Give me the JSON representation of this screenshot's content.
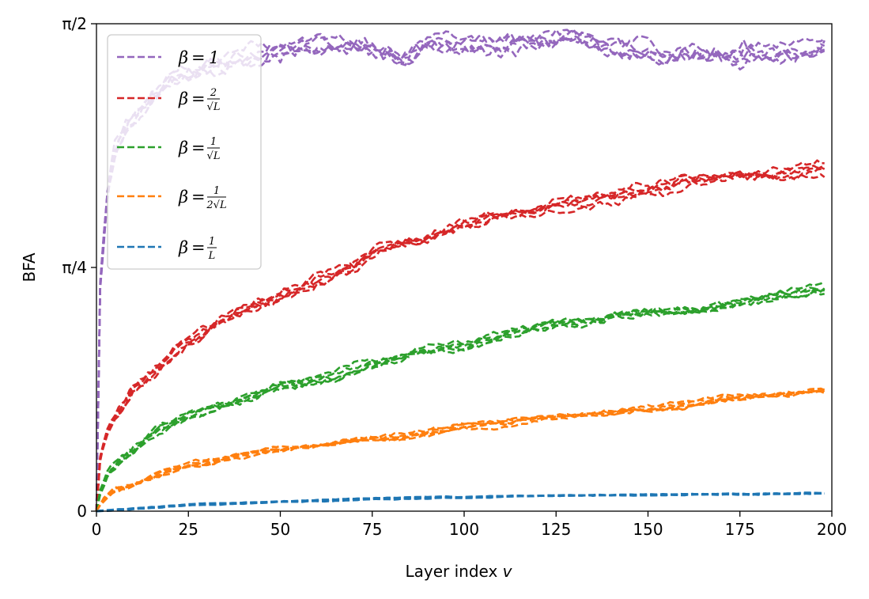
{
  "chart_data": {
    "type": "line",
    "title": "",
    "xlabel": "Layer index",
    "xlabel_var": "v",
    "ylabel": "BFA",
    "xlim": [
      0,
      200
    ],
    "ylim": [
      0,
      1.5708
    ],
    "x_ticks": [
      0,
      25,
      50,
      75,
      100,
      125,
      150,
      175,
      200
    ],
    "y_ticks": [
      {
        "value": 0,
        "label": "0"
      },
      {
        "value": 0.7854,
        "label": "π/4"
      },
      {
        "value": 1.5708,
        "label": "π/2"
      }
    ],
    "grid": false,
    "legend_position": "top-left",
    "legend": [
      {
        "label": "β = 1",
        "color": "#9467bd"
      },
      {
        "label": "β = 2/√L",
        "color": "#d62728"
      },
      {
        "label": "β = 1/√L",
        "color": "#2ca02c"
      },
      {
        "label": "β = 1/(2√L)",
        "color": "#ff7f0e"
      },
      {
        "label": "β = 1/L",
        "color": "#1f77b4"
      }
    ],
    "series": [
      {
        "group": "β = 1",
        "color": "#9467bd",
        "runs": 5,
        "x": [
          0,
          1,
          3,
          5,
          8,
          10,
          15,
          20,
          25,
          30,
          40,
          50,
          60,
          70,
          80,
          83,
          90,
          100,
          110,
          120,
          130,
          140,
          150,
          153,
          160,
          170,
          180,
          190,
          198
        ],
        "y": [
          0,
          0.73,
          1.02,
          1.16,
          1.23,
          1.26,
          1.33,
          1.38,
          1.41,
          1.44,
          1.47,
          1.48,
          1.49,
          1.5,
          1.47,
          1.45,
          1.5,
          1.49,
          1.48,
          1.5,
          1.51,
          1.48,
          1.47,
          1.45,
          1.48,
          1.47,
          1.49,
          1.48,
          1.5
        ]
      },
      {
        "group": "β = 2/√L",
        "color": "#d62728",
        "runs": 5,
        "x": [
          0,
          1,
          3,
          5,
          8,
          10,
          15,
          20,
          25,
          30,
          40,
          50,
          60,
          70,
          75,
          80,
          90,
          100,
          110,
          120,
          130,
          140,
          150,
          160,
          170,
          180,
          190,
          198
        ],
        "y": [
          0,
          0.17,
          0.26,
          0.3,
          0.35,
          0.39,
          0.44,
          0.49,
          0.54,
          0.58,
          0.65,
          0.7,
          0.75,
          0.79,
          0.84,
          0.86,
          0.88,
          0.92,
          0.95,
          0.97,
          1.0,
          1.02,
          1.04,
          1.06,
          1.07,
          1.08,
          1.09,
          1.1
        ]
      },
      {
        "group": "β = 1/√L",
        "color": "#2ca02c",
        "runs": 5,
        "x": [
          0,
          1,
          3,
          5,
          8,
          10,
          15,
          20,
          25,
          30,
          40,
          50,
          60,
          70,
          80,
          90,
          100,
          110,
          120,
          130,
          140,
          150,
          160,
          170,
          180,
          190,
          198
        ],
        "y": [
          0,
          0.06,
          0.12,
          0.15,
          0.18,
          0.2,
          0.25,
          0.28,
          0.31,
          0.33,
          0.36,
          0.4,
          0.42,
          0.46,
          0.49,
          0.52,
          0.53,
          0.56,
          0.59,
          0.61,
          0.62,
          0.64,
          0.65,
          0.67,
          0.69,
          0.71,
          0.72
        ]
      },
      {
        "group": "β = 1/(2√L)",
        "color": "#ff7f0e",
        "runs": 5,
        "x": [
          0,
          1,
          3,
          5,
          8,
          10,
          15,
          20,
          25,
          30,
          40,
          50,
          60,
          70,
          80,
          90,
          100,
          110,
          120,
          130,
          140,
          150,
          160,
          170,
          180,
          190,
          198
        ],
        "y": [
          0,
          0.02,
          0.05,
          0.07,
          0.08,
          0.09,
          0.11,
          0.13,
          0.15,
          0.16,
          0.18,
          0.2,
          0.21,
          0.23,
          0.24,
          0.25,
          0.27,
          0.28,
          0.3,
          0.31,
          0.32,
          0.33,
          0.34,
          0.36,
          0.37,
          0.38,
          0.39
        ]
      },
      {
        "group": "β = 1/L",
        "color": "#1f77b4",
        "runs": 5,
        "x": [
          0,
          25,
          50,
          75,
          100,
          125,
          150,
          175,
          198
        ],
        "y": [
          0,
          0.02,
          0.03,
          0.04,
          0.045,
          0.05,
          0.052,
          0.055,
          0.058
        ]
      }
    ]
  }
}
